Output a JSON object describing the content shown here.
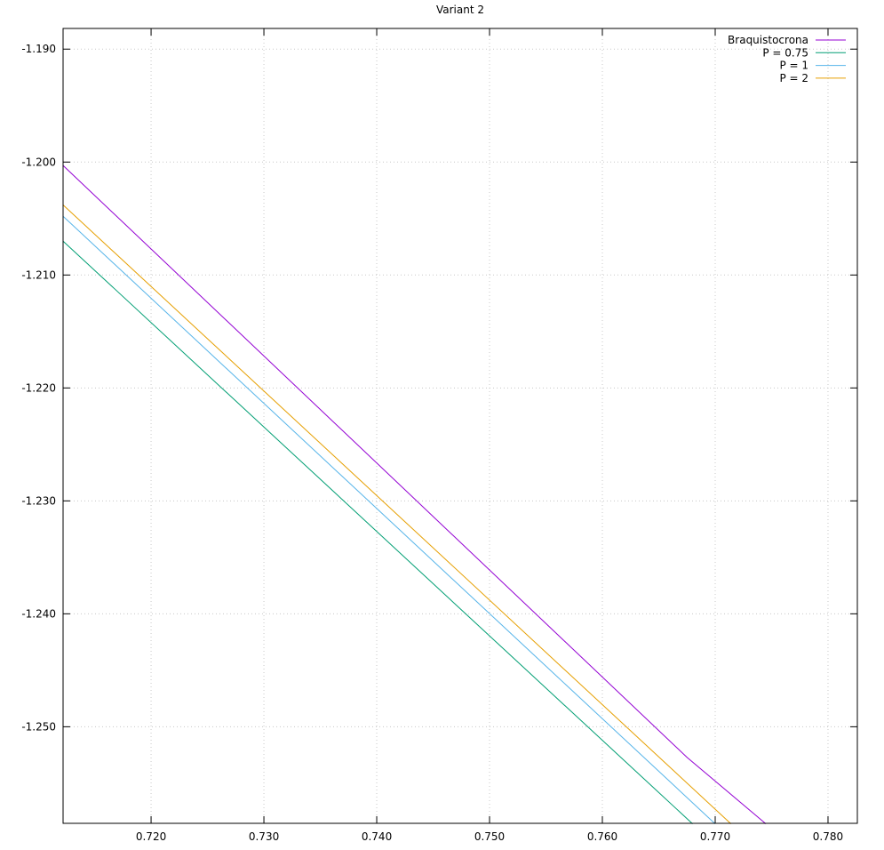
{
  "chart_data": {
    "type": "line",
    "title": "Variant 2",
    "xlabel": "",
    "ylabel": "",
    "xlim": [
      0.7122,
      0.7826
    ],
    "ylim": [
      -1.25855,
      -1.18817
    ],
    "x_ticks": [
      0.72,
      0.73,
      0.74,
      0.75,
      0.76,
      0.77,
      0.78
    ],
    "x_tick_labels": [
      "0.720",
      "0.730",
      "0.740",
      "0.750",
      "0.760",
      "0.770",
      "0.780"
    ],
    "y_ticks": [
      -1.19,
      -1.2,
      -1.21,
      -1.22,
      -1.23,
      -1.24,
      -1.25
    ],
    "y_tick_labels": [
      "-1.190",
      "-1.200",
      "-1.210",
      "-1.220",
      "-1.230",
      "-1.240",
      "-1.250"
    ],
    "grid": true,
    "legend_position": "top-right",
    "series": [
      {
        "name": "Braquistocrona",
        "color": "#9400d3",
        "x": [
          0.7122,
          0.7675,
          0.7745
        ],
        "y": [
          -1.2003,
          -1.2527,
          -1.2586
        ]
      },
      {
        "name": "P = 0.75",
        "color": "#009e73",
        "x": [
          0.7122,
          0.768
        ],
        "y": [
          -1.207,
          -1.2586
        ]
      },
      {
        "name": "P = 1",
        "color": "#56b4e9",
        "x": [
          0.7122,
          0.77
        ],
        "y": [
          -1.2048,
          -1.2586
        ]
      },
      {
        "name": "P = 2",
        "color": "#e69f00",
        "x": [
          0.7122,
          0.7714
        ],
        "y": [
          -1.2038,
          -1.2586
        ]
      }
    ]
  }
}
